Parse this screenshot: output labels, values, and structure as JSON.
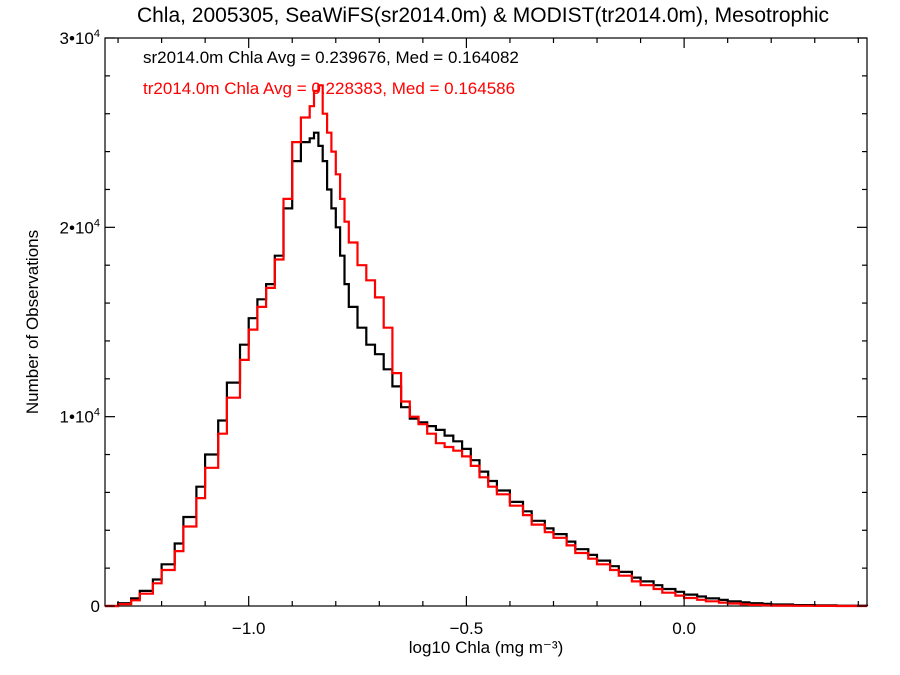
{
  "chart_data": {
    "type": "line",
    "title": "Chla, 2005305, SeaWiFS(sr2014.0m) & MODIST(tr2014.0m), Mesotrophic",
    "xlabel": "log10 Chla (mg m⁻³)",
    "ylabel": "Number of Observations",
    "xlim": [
      -1.33,
      0.42
    ],
    "ylim": [
      0,
      30000
    ],
    "x_ticks": [
      -1.0,
      -0.5,
      0.0
    ],
    "x_tick_labels": [
      "−1.0",
      "−0.5",
      "0.0"
    ],
    "y_ticks": [
      0,
      10000,
      20000,
      30000
    ],
    "y_tick_labels": [
      "0",
      "1•104",
      "2•104",
      "3•104"
    ],
    "grid": false,
    "series": [
      {
        "name": "sr2014.0m",
        "color": "#000000",
        "stat_text": "sr2014.0m Chla Avg = 0.239676, Med = 0.164082",
        "x": [
          -1.33,
          -1.3,
          -1.27,
          -1.25,
          -1.22,
          -1.2,
          -1.17,
          -1.15,
          -1.12,
          -1.1,
          -1.07,
          -1.05,
          -1.02,
          -1.0,
          -0.98,
          -0.96,
          -0.94,
          -0.92,
          -0.9,
          -0.88,
          -0.86,
          -0.85,
          -0.84,
          -0.83,
          -0.82,
          -0.81,
          -0.8,
          -0.79,
          -0.78,
          -0.77,
          -0.75,
          -0.73,
          -0.71,
          -0.69,
          -0.67,
          -0.65,
          -0.63,
          -0.61,
          -0.59,
          -0.57,
          -0.55,
          -0.53,
          -0.51,
          -0.49,
          -0.47,
          -0.45,
          -0.43,
          -0.4,
          -0.37,
          -0.35,
          -0.32,
          -0.3,
          -0.27,
          -0.25,
          -0.22,
          -0.2,
          -0.17,
          -0.15,
          -0.12,
          -0.1,
          -0.07,
          -0.05,
          -0.02,
          0.0,
          0.03,
          0.05,
          0.08,
          0.1,
          0.13,
          0.15,
          0.18,
          0.2,
          0.25,
          0.3,
          0.35,
          0.42
        ],
        "y": [
          0,
          150,
          400,
          800,
          1400,
          2200,
          3300,
          4700,
          6300,
          8000,
          9800,
          11800,
          13800,
          15200,
          16200,
          17000,
          18500,
          21000,
          23500,
          24500,
          24700,
          25000,
          24300,
          23500,
          22000,
          21000,
          20000,
          18500,
          17000,
          15800,
          14700,
          13800,
          13300,
          12500,
          11600,
          10500,
          9900,
          9700,
          9500,
          9300,
          9000,
          8700,
          8300,
          7700,
          7100,
          6600,
          6100,
          5500,
          5000,
          4500,
          4100,
          3800,
          3400,
          3000,
          2700,
          2400,
          2100,
          1800,
          1500,
          1300,
          1100,
          900,
          750,
          600,
          500,
          400,
          320,
          250,
          190,
          150,
          110,
          80,
          50,
          30,
          15,
          5
        ]
      },
      {
        "name": "tr2014.0m",
        "color": "#ff0000",
        "stat_text": "tr2014.0m Chla Avg = 0.228383, Med = 0.164586",
        "x": [
          -1.33,
          -1.3,
          -1.27,
          -1.25,
          -1.22,
          -1.2,
          -1.17,
          -1.15,
          -1.12,
          -1.1,
          -1.07,
          -1.05,
          -1.02,
          -1.0,
          -0.98,
          -0.96,
          -0.94,
          -0.92,
          -0.9,
          -0.88,
          -0.86,
          -0.85,
          -0.84,
          -0.83,
          -0.82,
          -0.81,
          -0.8,
          -0.79,
          -0.78,
          -0.77,
          -0.75,
          -0.73,
          -0.71,
          -0.69,
          -0.67,
          -0.65,
          -0.63,
          -0.61,
          -0.59,
          -0.57,
          -0.55,
          -0.53,
          -0.51,
          -0.49,
          -0.47,
          -0.45,
          -0.43,
          -0.4,
          -0.37,
          -0.35,
          -0.32,
          -0.3,
          -0.27,
          -0.25,
          -0.22,
          -0.2,
          -0.17,
          -0.15,
          -0.12,
          -0.1,
          -0.07,
          -0.05,
          -0.02,
          0.0,
          0.03,
          0.05,
          0.08,
          0.1,
          0.13,
          0.15,
          0.18,
          0.2,
          0.25,
          0.3,
          0.35,
          0.42
        ],
        "y": [
          0,
          100,
          300,
          650,
          1200,
          1900,
          2900,
          4200,
          5700,
          7300,
          9100,
          11000,
          13000,
          14600,
          15800,
          16800,
          18300,
          21500,
          24500,
          25800,
          26400,
          27200,
          27500,
          26000,
          25000,
          24000,
          22800,
          21500,
          20300,
          19200,
          18000,
          17200,
          16300,
          14700,
          12300,
          10800,
          10000,
          9600,
          9100,
          8600,
          8400,
          8200,
          7900,
          7400,
          6800,
          6300,
          5900,
          5300,
          4800,
          4300,
          3900,
          3600,
          3200,
          2800,
          2500,
          2200,
          1900,
          1600,
          1300,
          1100,
          900,
          700,
          550,
          420,
          330,
          250,
          180,
          130,
          90,
          60,
          35,
          20,
          10,
          5,
          2,
          0
        ]
      }
    ]
  }
}
